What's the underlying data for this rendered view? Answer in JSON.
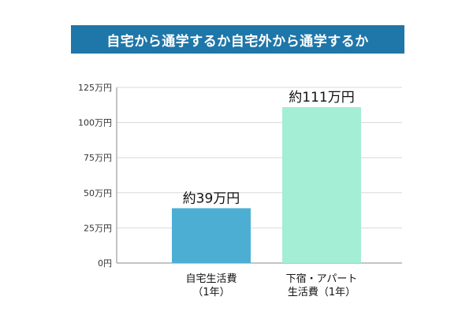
{
  "chart_data": {
    "type": "bar",
    "title": "自宅から通学するか自宅外から通学するか",
    "xlabel": "",
    "ylabel": "",
    "unit": "万円",
    "ylim": [
      0,
      125
    ],
    "yticks": [
      0,
      25,
      50,
      75,
      100,
      125
    ],
    "ytick_labels": [
      "0円",
      "25万円",
      "50万円",
      "75万円",
      "100万円",
      "125万円"
    ],
    "grid": true,
    "categories": [
      [
        "自宅生活費",
        "（1年）"
      ],
      [
        "下宿・アパート",
        "生活費（1年）"
      ]
    ],
    "values": [
      39,
      111
    ],
    "data_labels": [
      "約39万円",
      "約111万円"
    ],
    "colors": [
      "#4daed4",
      "#a4eed6"
    ],
    "grid_color": "#d9d9d9",
    "axis_color": "#888888"
  }
}
